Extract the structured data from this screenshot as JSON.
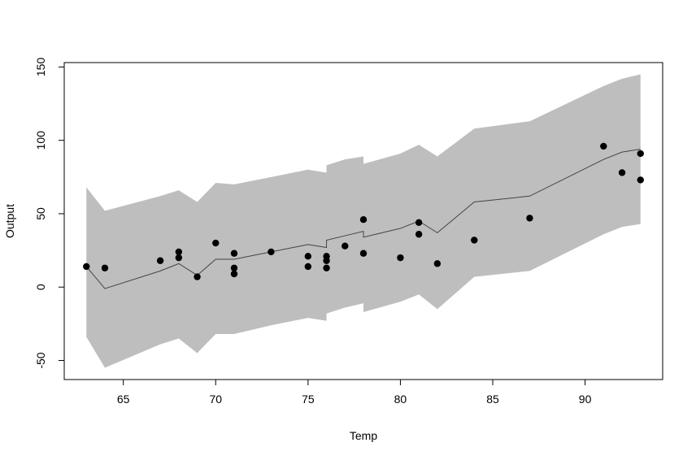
{
  "chart_data": {
    "type": "scatter",
    "title": "",
    "xlabel": "Temp",
    "ylabel": "Output",
    "xlim": [
      61.8,
      94.2
    ],
    "ylim": [
      -63,
      153
    ],
    "x_ticks": [
      65,
      70,
      75,
      80,
      85,
      90
    ],
    "y_ticks": [
      -50,
      0,
      50,
      100,
      150
    ],
    "grid": false,
    "legend": "none",
    "colors": {
      "band": "#bebebe",
      "line": "#444444",
      "points": "#000000"
    },
    "points": {
      "x": [
        63,
        64,
        67,
        68,
        68,
        69,
        70,
        71,
        71,
        71,
        73,
        75,
        75,
        76,
        76,
        76,
        77,
        78,
        78,
        80,
        81,
        81,
        82,
        84,
        87,
        91,
        92,
        93,
        93
      ],
      "y": [
        14,
        13,
        18,
        24,
        20,
        7,
        30,
        23,
        13,
        9,
        24,
        21,
        14,
        21,
        18,
        13,
        28,
        46,
        23,
        20,
        44,
        36,
        16,
        32,
        47,
        96,
        78,
        91,
        73
      ]
    },
    "fit": {
      "x": [
        63,
        64,
        67,
        68,
        68,
        69,
        70,
        71,
        71,
        71,
        73,
        75,
        76,
        76,
        77,
        78,
        78,
        80,
        81,
        82,
        84,
        87,
        91,
        92,
        93
      ],
      "y": [
        14,
        -1,
        11,
        16,
        16,
        8,
        19,
        19,
        19,
        19,
        24,
        29,
        27,
        32,
        35,
        38,
        34,
        40,
        45,
        37,
        58,
        62,
        87,
        92,
        94
      ]
    },
    "band": {
      "x": [
        63,
        64,
        67,
        68,
        68,
        69,
        70,
        71,
        71,
        71,
        73,
        75,
        76,
        76,
        77,
        78,
        78,
        80,
        81,
        82,
        84,
        87,
        91,
        92,
        93
      ],
      "upper": [
        68,
        52,
        62,
        66,
        66,
        58,
        71,
        70,
        70,
        70,
        75,
        80,
        78,
        83,
        87,
        89,
        84,
        91,
        97,
        89,
        108,
        113,
        137,
        142,
        145
      ],
      "lower": [
        -34,
        -55,
        -39,
        -35,
        -35,
        -45,
        -32,
        -32,
        -32,
        -32,
        -26,
        -21,
        -23,
        -18,
        -14,
        -11,
        -17,
        -10,
        -5,
        -15,
        7,
        11,
        36,
        41,
        43
      ]
    }
  }
}
